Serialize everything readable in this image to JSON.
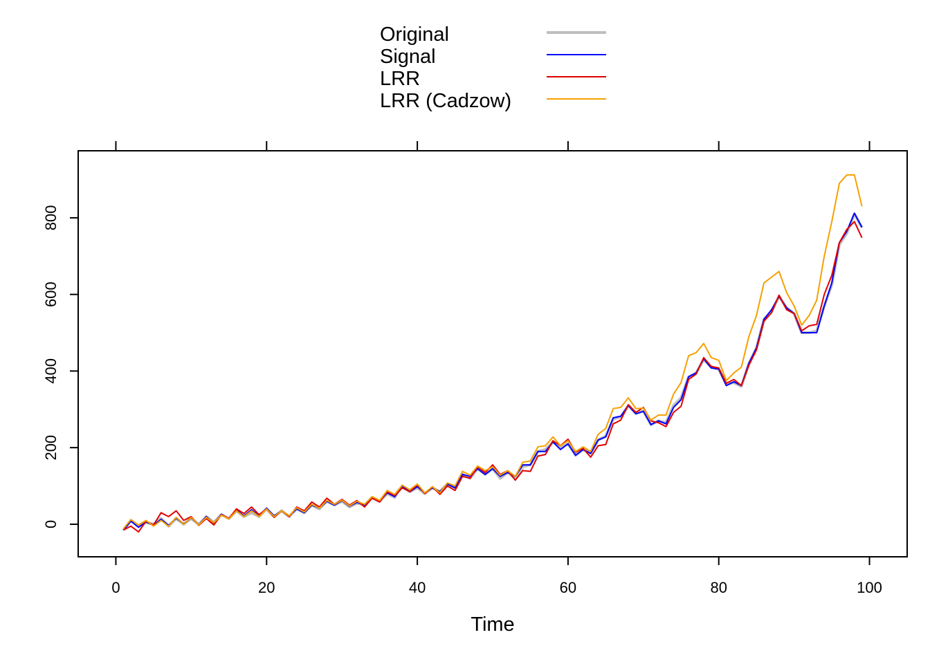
{
  "chart_data": {
    "type": "line",
    "title": "",
    "xlabel": "Time",
    "ylabel": "",
    "xlim": [
      -5,
      105
    ],
    "ylim": [
      -85,
      975
    ],
    "xticks": [
      0,
      20,
      40,
      60,
      80,
      100
    ],
    "yticks": [
      0,
      200,
      400,
      600,
      800
    ],
    "top_ticks": [
      0,
      20,
      40,
      60,
      80,
      100
    ],
    "grid": false,
    "legend_position": "top-center",
    "x_start": 1,
    "series": [
      {
        "name": "Original",
        "color": "#bebebe",
        "width": 4,
        "values": [
          -15,
          10,
          -5,
          5,
          0,
          15,
          -5,
          15,
          0,
          15,
          0,
          20,
          5,
          25,
          15,
          35,
          20,
          30,
          20,
          40,
          20,
          35,
          20,
          40,
          30,
          50,
          40,
          60,
          50,
          60,
          45,
          55,
          50,
          70,
          60,
          80,
          70,
          100,
          85,
          95,
          80,
          95,
          85,
          105,
          95,
          130,
          120,
          145,
          130,
          145,
          120,
          135,
          120,
          150,
          155,
          190,
          195,
          215,
          200,
          210,
          180,
          195,
          185,
          220,
          230,
          275,
          280,
          310,
          290,
          295,
          260,
          270,
          265,
          310,
          330,
          385,
          395,
          430,
          410,
          405,
          365,
          370,
          360,
          420,
          460,
          535,
          555,
          595,
          565,
          550,
          500,
          500,
          505,
          570,
          625,
          730,
          760,
          810,
          775
        ]
      },
      {
        "name": "Signal",
        "color": "#0000ff",
        "width": 2,
        "values": [
          -15,
          8,
          -8,
          6,
          -3,
          13,
          -3,
          16,
          1,
          17,
          -2,
          20,
          3,
          26,
          14,
          37,
          22,
          38,
          22,
          42,
          22,
          35,
          22,
          40,
          30,
          50,
          42,
          60,
          50,
          62,
          47,
          57,
          50,
          70,
          60,
          82,
          72,
          100,
          85,
          98,
          82,
          95,
          85,
          105,
          95,
          130,
          125,
          145,
          130,
          145,
          125,
          135,
          125,
          155,
          155,
          190,
          190,
          215,
          195,
          210,
          180,
          195,
          185,
          220,
          228,
          278,
          282,
          310,
          288,
          295,
          260,
          270,
          262,
          305,
          325,
          385,
          395,
          432,
          408,
          405,
          362,
          372,
          362,
          420,
          460,
          535,
          560,
          595,
          565,
          550,
          500,
          500,
          500,
          570,
          630,
          735,
          765,
          812,
          775
        ]
      },
      {
        "name": "LRR",
        "color": "#e00000",
        "width": 2,
        "values": [
          -15,
          -5,
          -20,
          8,
          -2,
          30,
          20,
          35,
          10,
          20,
          -3,
          15,
          -2,
          25,
          15,
          40,
          28,
          45,
          25,
          40,
          18,
          35,
          20,
          45,
          35,
          58,
          45,
          68,
          52,
          65,
          50,
          62,
          45,
          68,
          58,
          85,
          75,
          95,
          85,
          103,
          80,
          98,
          78,
          100,
          88,
          125,
          120,
          150,
          135,
          155,
          130,
          140,
          115,
          140,
          138,
          178,
          182,
          218,
          205,
          222,
          188,
          198,
          175,
          205,
          208,
          262,
          272,
          312,
          292,
          305,
          270,
          265,
          255,
          292,
          308,
          378,
          392,
          435,
          412,
          408,
          368,
          378,
          362,
          415,
          455,
          530,
          552,
          598,
          560,
          550,
          505,
          518,
          522,
          600,
          650,
          735,
          770,
          790,
          748
        ]
      },
      {
        "name": "LRR (Cadzow)",
        "color": "#f5a000",
        "width": 2,
        "values": [
          -12,
          12,
          -2,
          10,
          -5,
          10,
          -5,
          18,
          0,
          18,
          -2,
          18,
          4,
          24,
          14,
          35,
          20,
          35,
          20,
          40,
          20,
          35,
          22,
          43,
          32,
          52,
          42,
          62,
          52,
          63,
          48,
          60,
          52,
          72,
          62,
          88,
          78,
          102,
          90,
          105,
          82,
          98,
          82,
          108,
          100,
          138,
          128,
          152,
          140,
          150,
          128,
          140,
          125,
          162,
          165,
          202,
          205,
          228,
          205,
          218,
          190,
          202,
          190,
          235,
          250,
          302,
          305,
          330,
          302,
          303,
          272,
          285,
          285,
          340,
          370,
          440,
          448,
          472,
          435,
          428,
          375,
          395,
          410,
          490,
          545,
          630,
          645,
          660,
          605,
          570,
          520,
          545,
          585,
          700,
          790,
          890,
          912,
          912,
          830
        ]
      }
    ]
  }
}
